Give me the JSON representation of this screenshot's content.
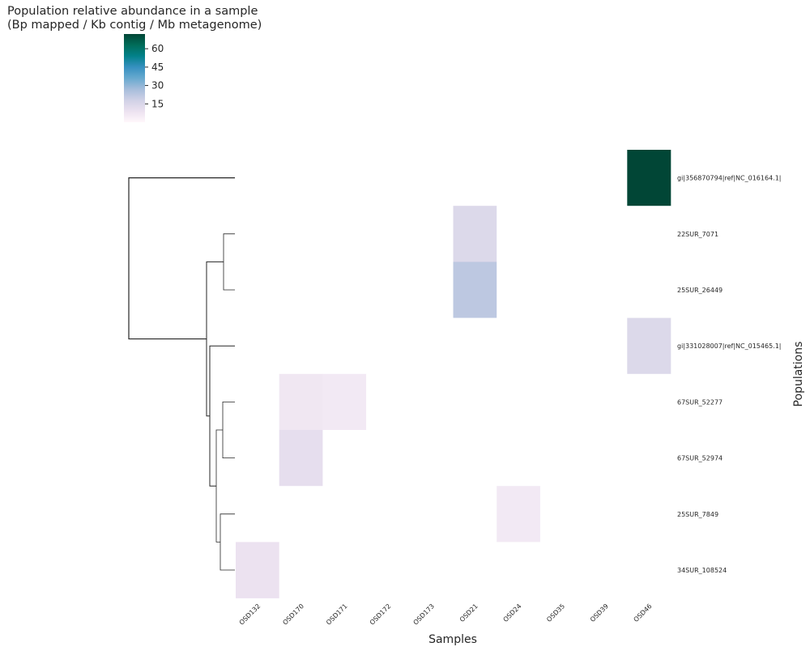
{
  "chart_data": {
    "type": "heatmap",
    "title_line1": "Population relative abundance in a sample",
    "title_line2": "(Bp mapped / Kb contig / Mb metagenome)",
    "xlabel": "Samples",
    "ylabel": "Populations",
    "columns": [
      "OSD132",
      "OSD170",
      "OSD171",
      "OSD172",
      "OSD173",
      "OSD21",
      "OSD24",
      "OSD35",
      "OSD39",
      "OSD46"
    ],
    "rows": [
      "gi|356870794|ref|NC_016164.1|",
      "22SUR_7071",
      "25SUR_26449",
      "gi|331028007|ref|NC_015465.1|",
      "67SUR_52277",
      "67SUR_52974",
      "25SUR_7849",
      "34SUR_108524"
    ],
    "values": [
      [
        0,
        0,
        0,
        0,
        0,
        0,
        0,
        0,
        0,
        72
      ],
      [
        0,
        0,
        0,
        0,
        0,
        14,
        0,
        0,
        0,
        0
      ],
      [
        0,
        0,
        0,
        0,
        0,
        22,
        0,
        0,
        0,
        0
      ],
      [
        0,
        0,
        0,
        0,
        0,
        0,
        0,
        0,
        0,
        14
      ],
      [
        0,
        7,
        6,
        0,
        0,
        0,
        0,
        0,
        0,
        0
      ],
      [
        0,
        11,
        0,
        0,
        0,
        0,
        0,
        0,
        0,
        0
      ],
      [
        0,
        0,
        0,
        0,
        0,
        0,
        6,
        0,
        0,
        0
      ],
      [
        9,
        0,
        0,
        0,
        0,
        0,
        0,
        0,
        0,
        0
      ]
    ],
    "colorbar": {
      "range": [
        0,
        72
      ],
      "ticks": [
        15,
        30,
        45,
        60
      ],
      "tick_labels": [
        "15",
        "30",
        "45",
        "60"
      ],
      "colormap": "PuBuGn",
      "colors": [
        "#fff7fb",
        "#ece2f0",
        "#d0d1e6",
        "#a6bddb",
        "#67a9cf",
        "#3690c0",
        "#02818a",
        "#016c59",
        "#014636"
      ]
    },
    "dendrogram": "row clustering tree shown on left"
  }
}
